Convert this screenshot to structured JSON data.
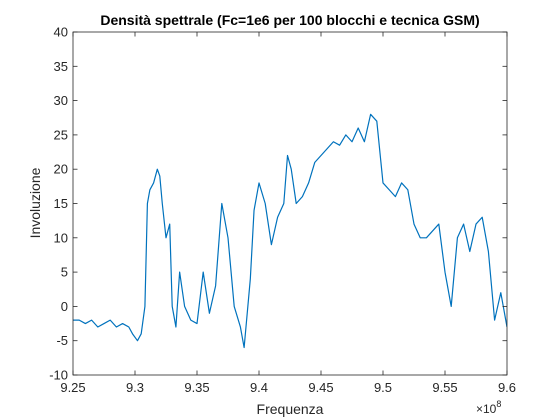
{
  "chart_data": {
    "type": "line",
    "title": "Densità spettrale (Fc=1e6 per 100 blocchi e tecnica GSM)",
    "xlabel": "Frequenza",
    "ylabel": "Involuzione",
    "x_exponent_base": "×10",
    "x_exponent_power": "8",
    "xlim": [
      9.25,
      9.6
    ],
    "ylim": [
      -10,
      40
    ],
    "x_ticks": [
      9.25,
      9.3,
      9.35,
      9.4,
      9.45,
      9.5,
      9.55,
      9.6
    ],
    "x_tick_labels": [
      "9.25",
      "9.3",
      "9.35",
      "9.4",
      "9.45",
      "9.5",
      "9.55",
      "9.6"
    ],
    "y_ticks": [
      -10,
      -5,
      0,
      5,
      10,
      15,
      20,
      25,
      30,
      35,
      40
    ],
    "y_tick_labels": [
      "-10",
      "-5",
      "0",
      "5",
      "10",
      "15",
      "20",
      "25",
      "30",
      "35",
      "40"
    ],
    "grid": false,
    "line_color": "#0072BD",
    "series": [
      {
        "x": [
          9.25,
          9.255,
          9.26,
          9.265,
          9.27,
          9.275,
          9.28,
          9.285,
          9.29,
          9.295,
          9.298,
          9.302,
          9.305,
          9.308,
          9.31,
          9.312,
          9.315,
          9.318,
          9.32,
          9.322,
          9.325,
          9.328,
          9.33,
          9.333,
          9.336,
          9.34,
          9.345,
          9.35,
          9.355,
          9.36,
          9.365,
          9.37,
          9.375,
          9.38,
          9.385,
          9.388,
          9.39,
          9.393,
          9.396,
          9.4,
          9.405,
          9.41,
          9.415,
          9.42,
          9.423,
          9.426,
          9.43,
          9.435,
          9.44,
          9.445,
          9.45,
          9.455,
          9.46,
          9.465,
          9.47,
          9.475,
          9.48,
          9.485,
          9.49,
          9.495,
          9.5,
          9.505,
          9.51,
          9.515,
          9.52,
          9.525,
          9.53,
          9.535,
          9.54,
          9.545,
          9.55,
          9.555,
          9.56,
          9.565,
          9.57,
          9.575,
          9.58,
          9.585,
          9.59,
          9.595,
          9.6
        ],
        "y": [
          -2,
          -2,
          -2.5,
          -2,
          -3,
          -2.5,
          -2,
          -3,
          -2.5,
          -3,
          -4,
          -5,
          -4,
          0,
          15,
          17,
          18,
          20,
          19,
          15,
          10,
          12,
          0,
          -3,
          5,
          0,
          -2,
          -2.5,
          5,
          -1,
          3,
          15,
          10,
          0,
          -3,
          -6,
          -2,
          4,
          14,
          18,
          15,
          9,
          13,
          15,
          22,
          20,
          15,
          16,
          18,
          21,
          22,
          23,
          24,
          23.5,
          25,
          24,
          26,
          24,
          28,
          27,
          18,
          17,
          16,
          18,
          17,
          12,
          10,
          10,
          11,
          12,
          5,
          0,
          10,
          12,
          8,
          12,
          13,
          8,
          -2,
          2,
          -3
        ]
      }
    ]
  }
}
